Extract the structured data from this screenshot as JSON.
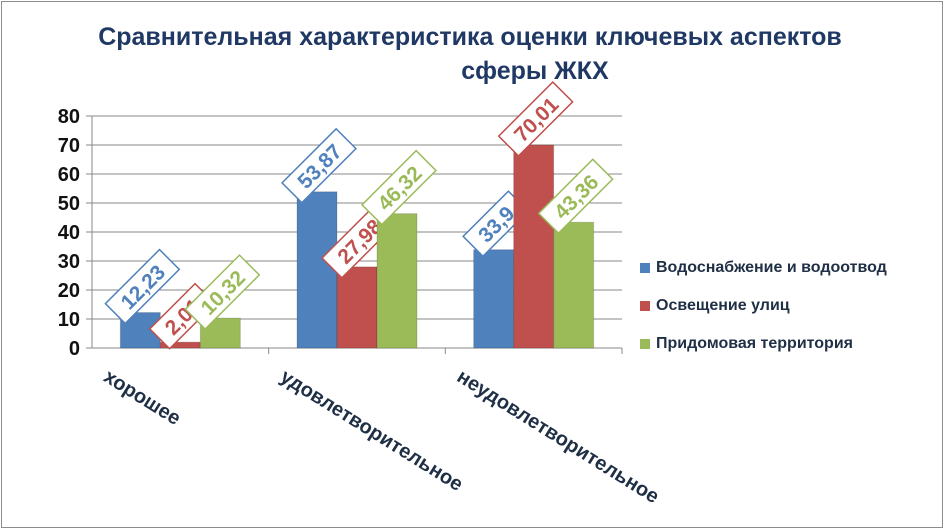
{
  "chart_data": {
    "type": "bar",
    "title": "Сравнительная характеристика оценки ключевых аспектов сферы ЖКХ",
    "title_lines": [
      "Сравнительная характеристика оценки ключевых аспектов",
      "сферы ЖКХ"
    ],
    "categories": [
      "хорошее",
      "удовлетворительное",
      "неудовлетворительное"
    ],
    "series": [
      {
        "name": "Водоснабжение и водоотвод",
        "values": [
          12.23,
          53.87,
          33.9
        ],
        "labels": [
          "12,23",
          "53,87",
          "33,9"
        ],
        "color": "#4f81bd"
      },
      {
        "name": "Освещение улиц",
        "values": [
          2.01,
          27.98,
          70.01
        ],
        "labels": [
          "2,01",
          "27,98",
          "70,01"
        ],
        "color": "#c0504d"
      },
      {
        "name": "Придомовая территория",
        "values": [
          10.32,
          46.32,
          43.36
        ],
        "labels": [
          "10,32",
          "46,32",
          "43,36"
        ],
        "color": "#9bbb59"
      }
    ],
    "ylim": [
      0,
      80
    ],
    "yticks": [
      "0",
      "10",
      "20",
      "30",
      "40",
      "50",
      "60",
      "70",
      "80"
    ],
    "xlabel": "",
    "ylabel": "",
    "grid": true,
    "legend_position": "right"
  }
}
